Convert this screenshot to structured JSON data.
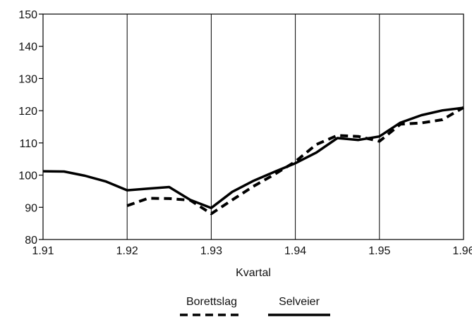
{
  "chart_data": {
    "type": "line",
    "title": "",
    "xlabel": "Kvartal",
    "ylabel": "",
    "xlim": [
      1.91,
      1.96
    ],
    "ylim": [
      80,
      150
    ],
    "x_ticks": [
      1.91,
      1.92,
      1.93,
      1.94,
      1.95,
      1.96
    ],
    "x_tick_labels": [
      "1.91",
      "1.92",
      "1.93",
      "1.94",
      "1.95",
      "1.96"
    ],
    "y_ticks": [
      80,
      90,
      100,
      110,
      120,
      130,
      140,
      150
    ],
    "y_tick_labels": [
      "80",
      "90",
      "100",
      "110",
      "120",
      "130",
      "140",
      "150"
    ],
    "grid": "vertical",
    "legend_position": "bottom",
    "series": [
      {
        "name": "Borettslag",
        "style": "dashed",
        "color": "#000000",
        "x": [
          1.92,
          1.9225,
          1.925,
          1.9275,
          1.93,
          1.9325,
          1.935,
          1.9375,
          1.94,
          1.9425,
          1.945,
          1.9475,
          1.95,
          1.9525,
          1.955,
          1.9575,
          1.96
        ],
        "y": [
          90.5,
          92.8,
          92.7,
          92.2,
          88.0,
          92.3,
          96.5,
          100.2,
          104.2,
          109.5,
          112.3,
          112.0,
          110.5,
          115.8,
          116.2,
          117.2,
          121.0
        ]
      },
      {
        "name": "Selveier",
        "style": "solid",
        "color": "#000000",
        "x": [
          1.91,
          1.9125,
          1.915,
          1.9175,
          1.92,
          1.9225,
          1.925,
          1.9275,
          1.93,
          1.9325,
          1.935,
          1.9375,
          1.94,
          1.9425,
          1.945,
          1.9475,
          1.95,
          1.9525,
          1.955,
          1.9575,
          1.96
        ],
        "y": [
          101.2,
          101.1,
          99.8,
          98.0,
          95.3,
          95.8,
          96.3,
          92.3,
          89.8,
          94.8,
          98.2,
          101.0,
          103.7,
          107.0,
          111.5,
          110.9,
          112.0,
          116.3,
          118.6,
          120.1,
          120.9
        ]
      }
    ]
  }
}
